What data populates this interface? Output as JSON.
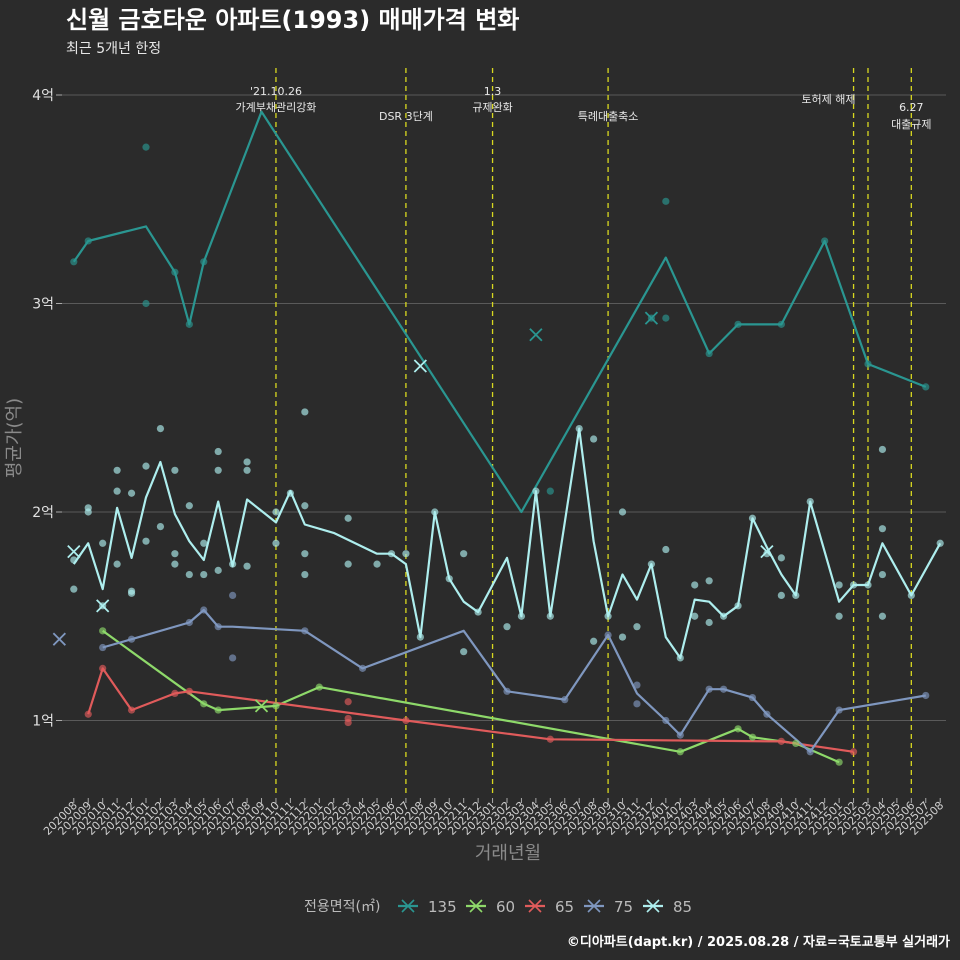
{
  "chart_data": {
    "type": "line",
    "title": "신월 금호타운 아파트(1993) 매매가격 변화",
    "subtitle": "최근 5개년 한정",
    "xlabel": "거래년월",
    "ylabel": "평균가(억)",
    "ylim": [
      0.65,
      4.2
    ],
    "yticks": [
      1,
      2,
      3,
      4
    ],
    "ytick_labels": [
      "1억",
      "2억",
      "3억",
      "4억"
    ],
    "grid": true,
    "legend_title": "전용면적(㎡)",
    "legend_position": "bottom",
    "caption": "©디아파트(dapt.kr) / 2025.08.28 / 자료=국토교통부 실거래가",
    "months": [
      "202008",
      "202009",
      "202010",
      "202011",
      "202012",
      "202101",
      "202102",
      "202103",
      "202104",
      "202105",
      "202106",
      "202107",
      "202108",
      "202109",
      "202110",
      "202111",
      "202112",
      "202201",
      "202202",
      "202203",
      "202204",
      "202205",
      "202206",
      "202207",
      "202208",
      "202209",
      "202210",
      "202211",
      "202212",
      "202301",
      "202302",
      "202303",
      "202304",
      "202305",
      "202306",
      "202307",
      "202308",
      "202309",
      "202310",
      "202311",
      "202312",
      "202401",
      "202402",
      "202403",
      "202404",
      "202405",
      "202406",
      "202407",
      "202408",
      "202409",
      "202410",
      "202411",
      "202412",
      "202501",
      "202502",
      "202503",
      "202504",
      "202505",
      "202506",
      "202507",
      "202508"
    ],
    "series": [
      {
        "name": "135",
        "color": "#2a9691",
        "points": [
          [
            "202008",
            3.2
          ],
          [
            "202009",
            3.3
          ],
          [
            "202101",
            3.37
          ],
          [
            "202103",
            3.15
          ],
          [
            "202104",
            2.9
          ],
          [
            "202105",
            3.2
          ],
          [
            "202109",
            3.92
          ],
          [
            "202303",
            2.0
          ],
          [
            "202401",
            3.22
          ],
          [
            "202404",
            2.76
          ],
          [
            "202406",
            2.9
          ],
          [
            "202409",
            2.9
          ],
          [
            "202412",
            3.3
          ],
          [
            "202503",
            2.71
          ],
          [
            "202507",
            2.6
          ]
        ],
        "scatter": [
          [
            "202008",
            3.2
          ],
          [
            "202009",
            3.3
          ],
          [
            "202101",
            3.75
          ],
          [
            "202101",
            3.0
          ],
          [
            "202103",
            3.15
          ],
          [
            "202104",
            2.9
          ],
          [
            "202105",
            3.2
          ],
          [
            "202305",
            2.1
          ],
          [
            "202312",
            2.93
          ],
          [
            "202401",
            3.49
          ],
          [
            "202401",
            2.93
          ],
          [
            "202404",
            2.76
          ],
          [
            "202406",
            2.9
          ],
          [
            "202409",
            2.9
          ],
          [
            "202412",
            3.3
          ],
          [
            "202503",
            2.71
          ],
          [
            "202507",
            2.6
          ]
        ],
        "cancelled": [
          [
            "202304",
            2.85
          ],
          [
            "202312",
            2.93
          ]
        ]
      },
      {
        "name": "60",
        "color": "#8ed96a",
        "points": [
          [
            "202010",
            1.43
          ],
          [
            "202105",
            1.08
          ],
          [
            "202106",
            1.05
          ],
          [
            "202110",
            1.07
          ],
          [
            "202201",
            1.16
          ],
          [
            "202402",
            0.85
          ],
          [
            "202406",
            0.96
          ],
          [
            "202407",
            0.92
          ],
          [
            "202410",
            0.89
          ],
          [
            "202501",
            0.8
          ]
        ],
        "scatter": [
          [
            "202010",
            1.43
          ],
          [
            "202105",
            1.08
          ],
          [
            "202106",
            1.05
          ],
          [
            "202110",
            1.07
          ],
          [
            "202201",
            1.16
          ],
          [
            "202402",
            0.85
          ],
          [
            "202406",
            0.96
          ],
          [
            "202407",
            0.92
          ],
          [
            "202410",
            0.89
          ],
          [
            "202501",
            0.8
          ]
        ],
        "cancelled": [
          [
            "202109",
            1.07
          ]
        ]
      },
      {
        "name": "65",
        "color": "#e05b5b",
        "points": [
          [
            "202009",
            1.03
          ],
          [
            "202010",
            1.25
          ],
          [
            "202012",
            1.05
          ],
          [
            "202103",
            1.13
          ],
          [
            "202104",
            1.14
          ],
          [
            "202207",
            1.0
          ],
          [
            "202305",
            0.91
          ],
          [
            "202409",
            0.9
          ],
          [
            "202502",
            0.85
          ]
        ],
        "scatter": [
          [
            "202009",
            1.03
          ],
          [
            "202010",
            1.25
          ],
          [
            "202012",
            1.05
          ],
          [
            "202103",
            1.13
          ],
          [
            "202104",
            1.14
          ],
          [
            "202203",
            1.09
          ],
          [
            "202203",
            1.01
          ],
          [
            "202203",
            0.99
          ],
          [
            "202207",
            1.0
          ],
          [
            "202305",
            0.91
          ],
          [
            "202409",
            0.9
          ],
          [
            "202502",
            0.85
          ]
        ],
        "cancelled": []
      },
      {
        "name": "75",
        "color": "#7f97bf",
        "points": [
          [
            "202010",
            1.35
          ],
          [
            "202012",
            1.39
          ],
          [
            "202104",
            1.47
          ],
          [
            "202105",
            1.53
          ],
          [
            "202106",
            1.45
          ],
          [
            "202107",
            1.45
          ],
          [
            "202112",
            1.43
          ],
          [
            "202204",
            1.25
          ],
          [
            "202211",
            1.43
          ],
          [
            "202302",
            1.14
          ],
          [
            "202306",
            1.1
          ],
          [
            "202309",
            1.41
          ],
          [
            "202311",
            1.13
          ],
          [
            "202401",
            1.0
          ],
          [
            "202402",
            0.93
          ],
          [
            "202404",
            1.15
          ],
          [
            "202405",
            1.15
          ],
          [
            "202407",
            1.11
          ],
          [
            "202408",
            1.03
          ],
          [
            "202411",
            0.85
          ],
          [
            "202501",
            1.05
          ],
          [
            "202507",
            1.12
          ]
        ],
        "scatter": [
          [
            "202010",
            1.35
          ],
          [
            "202012",
            1.39
          ],
          [
            "202104",
            1.47
          ],
          [
            "202105",
            1.53
          ],
          [
            "202106",
            1.45
          ],
          [
            "202107",
            1.3
          ],
          [
            "202107",
            1.6
          ],
          [
            "202112",
            1.43
          ],
          [
            "202204",
            1.25
          ],
          [
            "202302",
            1.14
          ],
          [
            "202306",
            1.1
          ],
          [
            "202309",
            1.41
          ],
          [
            "202311",
            1.17
          ],
          [
            "202311",
            1.08
          ],
          [
            "202401",
            1.0
          ],
          [
            "202402",
            0.93
          ],
          [
            "202404",
            1.15
          ],
          [
            "202405",
            1.15
          ],
          [
            "202407",
            1.11
          ],
          [
            "202408",
            1.03
          ],
          [
            "202411",
            0.85
          ],
          [
            "202501",
            1.05
          ],
          [
            "202507",
            1.12
          ]
        ],
        "cancelled": [
          [
            "202007",
            1.39
          ]
        ]
      },
      {
        "name": "85",
        "color": "#aeeeee",
        "points": [
          [
            "202008",
            1.75
          ],
          [
            "202009",
            1.85
          ],
          [
            "202010",
            1.63
          ],
          [
            "202011",
            2.02
          ],
          [
            "202012",
            1.78
          ],
          [
            "202101",
            2.07
          ],
          [
            "202102",
            2.24
          ],
          [
            "202103",
            1.99
          ],
          [
            "202104",
            1.86
          ],
          [
            "202105",
            1.77
          ],
          [
            "202106",
            2.05
          ],
          [
            "202107",
            1.74
          ],
          [
            "202108",
            2.06
          ],
          [
            "202110",
            1.95
          ],
          [
            "202111",
            2.1
          ],
          [
            "202112",
            1.94
          ],
          [
            "202202",
            1.9
          ],
          [
            "202205",
            1.8
          ],
          [
            "202206",
            1.8
          ],
          [
            "202207",
            1.75
          ],
          [
            "202208",
            1.4
          ],
          [
            "202209",
            2.0
          ],
          [
            "202210",
            1.68
          ],
          [
            "202211",
            1.57
          ],
          [
            "202212",
            1.52
          ],
          [
            "202302",
            1.78
          ],
          [
            "202303",
            1.5
          ],
          [
            "202304",
            2.1
          ],
          [
            "202305",
            1.5
          ],
          [
            "202307",
            2.4
          ],
          [
            "202308",
            1.86
          ],
          [
            "202309",
            1.5
          ],
          [
            "202310",
            1.7
          ],
          [
            "202311",
            1.58
          ],
          [
            "202312",
            1.75
          ],
          [
            "202401",
            1.4
          ],
          [
            "202402",
            1.3
          ],
          [
            "202403",
            1.58
          ],
          [
            "202404",
            1.57
          ],
          [
            "202405",
            1.5
          ],
          [
            "202406",
            1.55
          ],
          [
            "202407",
            1.97
          ],
          [
            "202408",
            1.83
          ],
          [
            "202409",
            1.7
          ],
          [
            "202410",
            1.6
          ],
          [
            "202411",
            2.05
          ],
          [
            "202501",
            1.57
          ],
          [
            "202502",
            1.65
          ],
          [
            "202503",
            1.65
          ],
          [
            "202504",
            1.85
          ],
          [
            "202506",
            1.6
          ],
          [
            "202508",
            1.85
          ]
        ],
        "scatter": [
          [
            "202008",
            1.77
          ],
          [
            "202008",
            1.63
          ],
          [
            "202009",
            2.0
          ],
          [
            "202009",
            2.02
          ],
          [
            "202010",
            1.55
          ],
          [
            "202010",
            1.85
          ],
          [
            "202011",
            2.2
          ],
          [
            "202011",
            2.1
          ],
          [
            "202011",
            1.75
          ],
          [
            "202012",
            1.61
          ],
          [
            "202012",
            1.62
          ],
          [
            "202012",
            2.09
          ],
          [
            "202101",
            2.22
          ],
          [
            "202101",
            1.86
          ],
          [
            "202102",
            2.4
          ],
          [
            "202102",
            1.93
          ],
          [
            "202103",
            2.2
          ],
          [
            "202103",
            1.8
          ],
          [
            "202103",
            1.75
          ],
          [
            "202104",
            2.03
          ],
          [
            "202104",
            1.7
          ],
          [
            "202105",
            1.85
          ],
          [
            "202105",
            1.7
          ],
          [
            "202106",
            2.29
          ],
          [
            "202106",
            2.2
          ],
          [
            "202106",
            1.72
          ],
          [
            "202107",
            1.75
          ],
          [
            "202108",
            2.24
          ],
          [
            "202108",
            2.2
          ],
          [
            "202108",
            1.74
          ],
          [
            "202110",
            2.0
          ],
          [
            "202110",
            1.85
          ],
          [
            "202111",
            2.09
          ],
          [
            "202112",
            2.48
          ],
          [
            "202112",
            2.03
          ],
          [
            "202112",
            1.8
          ],
          [
            "202112",
            1.7
          ],
          [
            "202203",
            1.97
          ],
          [
            "202203",
            1.75
          ],
          [
            "202205",
            1.75
          ],
          [
            "202206",
            1.8
          ],
          [
            "202207",
            1.8
          ],
          [
            "202208",
            1.4
          ],
          [
            "202209",
            2.0
          ],
          [
            "202210",
            1.68
          ],
          [
            "202211",
            1.8
          ],
          [
            "202211",
            1.33
          ],
          [
            "202212",
            1.52
          ],
          [
            "202302",
            1.45
          ],
          [
            "202303",
            1.5
          ],
          [
            "202304",
            2.1
          ],
          [
            "202305",
            1.5
          ],
          [
            "202307",
            2.4
          ],
          [
            "202308",
            2.35
          ],
          [
            "202308",
            1.38
          ],
          [
            "202309",
            1.5
          ],
          [
            "202310",
            2.0
          ],
          [
            "202310",
            1.4
          ],
          [
            "202311",
            1.45
          ],
          [
            "202312",
            1.75
          ],
          [
            "202401",
            1.82
          ],
          [
            "202402",
            1.3
          ],
          [
            "202403",
            1.65
          ],
          [
            "202403",
            1.5
          ],
          [
            "202404",
            1.67
          ],
          [
            "202404",
            1.47
          ],
          [
            "202405",
            1.5
          ],
          [
            "202406",
            1.55
          ],
          [
            "202407",
            1.97
          ],
          [
            "202408",
            1.8
          ],
          [
            "202409",
            1.78
          ],
          [
            "202409",
            1.6
          ],
          [
            "202410",
            1.6
          ],
          [
            "202411",
            2.05
          ],
          [
            "202501",
            1.65
          ],
          [
            "202501",
            1.5
          ],
          [
            "202502",
            1.65
          ],
          [
            "202503",
            1.65
          ],
          [
            "202504",
            2.3
          ],
          [
            "202504",
            1.92
          ],
          [
            "202504",
            1.7
          ],
          [
            "202504",
            1.5
          ],
          [
            "202506",
            1.6
          ],
          [
            "202508",
            1.85
          ]
        ],
        "cancelled": [
          [
            "202008",
            1.81
          ],
          [
            "202010",
            1.55
          ],
          [
            "202208",
            2.7
          ],
          [
            "202408",
            1.81
          ]
        ]
      }
    ],
    "events": [
      {
        "month": "202110",
        "lines": [
          "'21.10.26",
          "가계부채관리강화"
        ],
        "level": "high"
      },
      {
        "month": "202207",
        "lines": [
          "DSR 3단계"
        ],
        "level": "low"
      },
      {
        "month": "202301",
        "lines": [
          "1.3",
          "규제완화"
        ],
        "level": "high"
      },
      {
        "month": "202309",
        "lines": [
          "특례대출축소"
        ],
        "level": "low"
      },
      {
        "month": "202502",
        "lines": [
          "토허제 해제"
        ],
        "level": "mid",
        "anchor": "end"
      },
      {
        "month": "202503",
        "lines": [],
        "level": "mid"
      },
      {
        "month": "202506",
        "lines": [
          "6.27",
          "대출규제"
        ],
        "level": "high2"
      }
    ]
  }
}
